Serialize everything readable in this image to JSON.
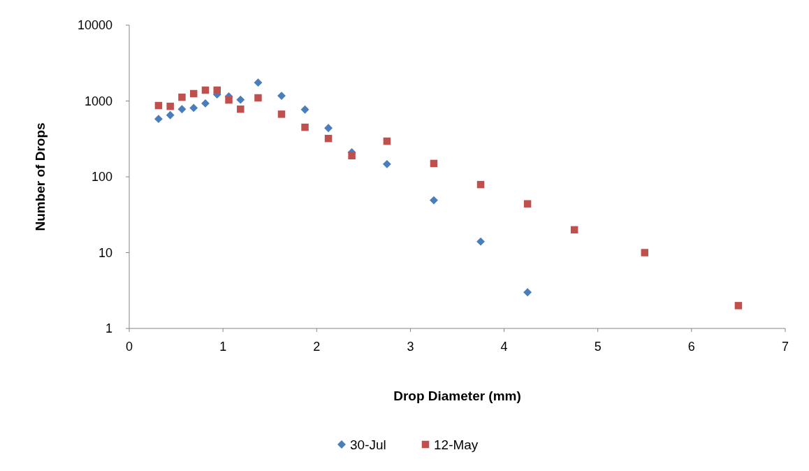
{
  "chart_data": {
    "type": "scatter",
    "xlabel": "Drop Diameter (mm)",
    "ylabel": "Number of Drops",
    "log": "y",
    "xlim": [
      0,
      7
    ],
    "xticks": [
      0,
      1,
      2,
      3,
      4,
      5,
      6,
      7
    ],
    "ylim": [
      1,
      10000
    ],
    "yticks": [
      1,
      10,
      100,
      1000,
      10000
    ],
    "grid": false,
    "legend": "bottom",
    "series": [
      {
        "name": "30-Jul",
        "color": "#4a7ebb",
        "marker": "diamond",
        "x": [
          0.3125,
          0.4375,
          0.5625,
          0.6875,
          0.8125,
          0.9375,
          1.0625,
          1.1875,
          1.375,
          1.625,
          1.875,
          2.125,
          2.375,
          2.75,
          3.25,
          3.75,
          4.25
        ],
        "values": [
          580,
          650,
          780,
          810,
          930,
          1220,
          1150,
          1040,
          1750,
          1170,
          770,
          440,
          210,
          147,
          49,
          14,
          3
        ]
      },
      {
        "name": "12-May",
        "color": "#c0504d",
        "marker": "square",
        "x": [
          0.3125,
          0.4375,
          0.5625,
          0.6875,
          0.8125,
          0.9375,
          1.0625,
          1.1875,
          1.375,
          1.625,
          1.875,
          2.125,
          2.375,
          2.75,
          3.25,
          3.75,
          4.25,
          4.75,
          5.5,
          6.5
        ],
        "values": [
          870,
          850,
          1120,
          1250,
          1390,
          1390,
          1030,
          780,
          1100,
          670,
          450,
          320,
          190,
          295,
          150,
          79,
          44,
          20,
          10,
          2
        ]
      }
    ]
  }
}
